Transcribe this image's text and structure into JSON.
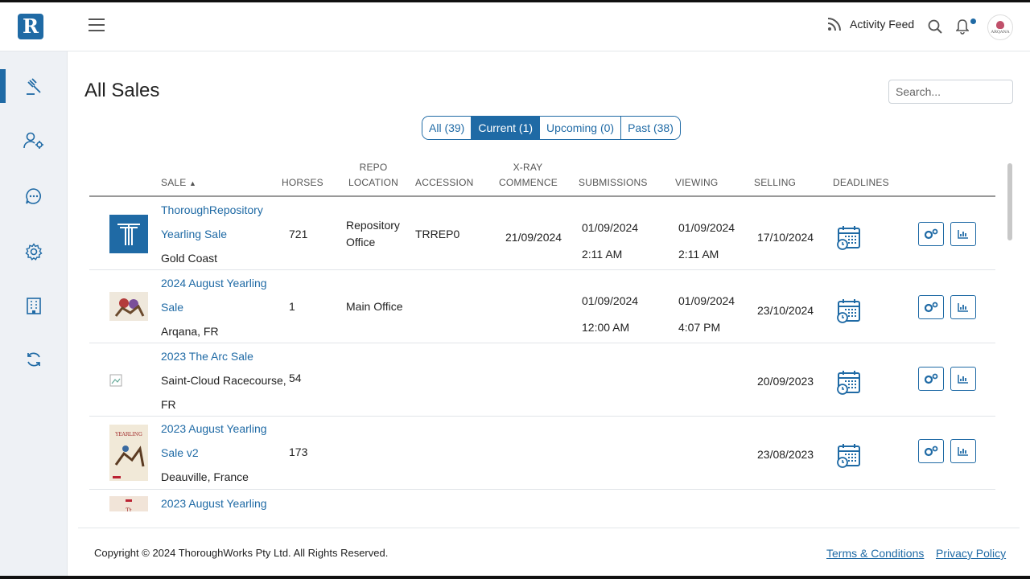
{
  "app": {
    "logo_letter": "R",
    "brand_color": "#1f6aa5"
  },
  "header": {
    "activity_feed_label": "Activity Feed",
    "avatar_text": "ARQANA",
    "icons": [
      "menu-icon",
      "rss-icon",
      "search-icon",
      "bell-icon"
    ]
  },
  "sidebar": {
    "items": [
      {
        "icon": "gavel-icon",
        "active": true
      },
      {
        "icon": "user-settings-icon",
        "active": false
      },
      {
        "icon": "chat-icon",
        "active": false
      },
      {
        "icon": "gear-icon",
        "active": false
      },
      {
        "icon": "building-icon",
        "active": false
      },
      {
        "icon": "sync-icon",
        "active": false
      }
    ]
  },
  "page": {
    "title": "All Sales",
    "search_placeholder": "Search..."
  },
  "filters": [
    {
      "label": "All (39)",
      "active": false
    },
    {
      "label": "Current (1)",
      "active": true
    },
    {
      "label": "Upcoming (0)",
      "active": false
    },
    {
      "label": "Past (38)",
      "active": false
    }
  ],
  "table": {
    "headers": {
      "sale": "SALE",
      "horses": "HORSES",
      "repo_location_1": "REPO",
      "repo_location_2": "LOCATION",
      "accession": "ACCESSION",
      "xray_1": "X-RAY",
      "xray_2": "COMMENCE",
      "submissions": "SUBMISSIONS",
      "viewing": "VIEWING",
      "selling": "SELLING",
      "deadlines": "DEADLINES"
    },
    "rows": [
      {
        "name_1": "ThoroughRepository",
        "name_2": "Yearling Sale",
        "location": "Gold Coast",
        "horses": "721",
        "repo_1": "Repository",
        "repo_2": "Office",
        "accession": "TRREP0",
        "xray": "21/09/2024",
        "sub_date": "01/09/2024",
        "sub_time": "2:11 AM",
        "view_date": "01/09/2024",
        "view_time": "2:11 AM",
        "selling": "17/10/2024"
      },
      {
        "name_1": "2024 August Yearling",
        "name_2": "Sale",
        "location": "Arqana, FR",
        "horses": "1",
        "repo_1": "Main Office",
        "repo_2": "",
        "accession": "",
        "xray": "",
        "sub_date": "01/09/2024",
        "sub_time": "12:00 AM",
        "view_date": "01/09/2024",
        "view_time": "4:07 PM",
        "selling": "23/10/2024"
      },
      {
        "name_1": "2023 The Arc Sale",
        "name_2": "",
        "location_1": "Saint-Cloud Racecourse,",
        "location_2": "FR",
        "horses": "54",
        "selling": "20/09/2023"
      },
      {
        "name_1": "2023 August Yearling",
        "name_2": "Sale v2",
        "location": "Deauville, France",
        "horses": "173",
        "selling": "23/08/2023"
      },
      {
        "name_1": "2023 August Yearling"
      }
    ]
  },
  "footer": {
    "copyright": "Copyright © 2024 ThoroughWorks Pty Ltd. All Rights Reserved.",
    "terms": "Terms & Conditions",
    "privacy": "Privacy Policy"
  }
}
